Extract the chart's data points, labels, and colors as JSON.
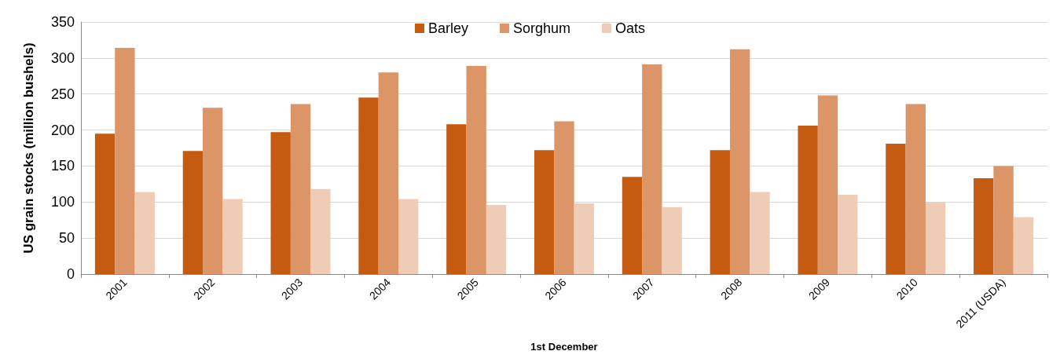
{
  "chart_data": {
    "type": "bar",
    "xlabel": "1st December",
    "ylabel": "US grain stocks (million bushels)",
    "categories": [
      "2001",
      "2002",
      "2003",
      "2004",
      "2005",
      "2006",
      "2007",
      "2008",
      "2009",
      "2010",
      "2011 (USDA)"
    ],
    "series": [
      {
        "name": "Barley",
        "color": "#c55a11",
        "values": [
          195,
          171,
          197,
          245,
          208,
          172,
          135,
          172,
          206,
          181,
          133
        ]
      },
      {
        "name": "Sorghum",
        "color": "#dc9566",
        "values": [
          314,
          231,
          236,
          280,
          289,
          212,
          291,
          312,
          248,
          236,
          150
        ]
      },
      {
        "name": "Oats",
        "color": "#efccb6",
        "values": [
          114,
          104,
          118,
          104,
          96,
          98,
          93,
          114,
          110,
          100,
          79
        ]
      }
    ],
    "ylim": [
      0,
      350
    ],
    "yticks": [
      0,
      50,
      100,
      150,
      200,
      250,
      300,
      350
    ],
    "grid": "y",
    "legend": "top"
  }
}
